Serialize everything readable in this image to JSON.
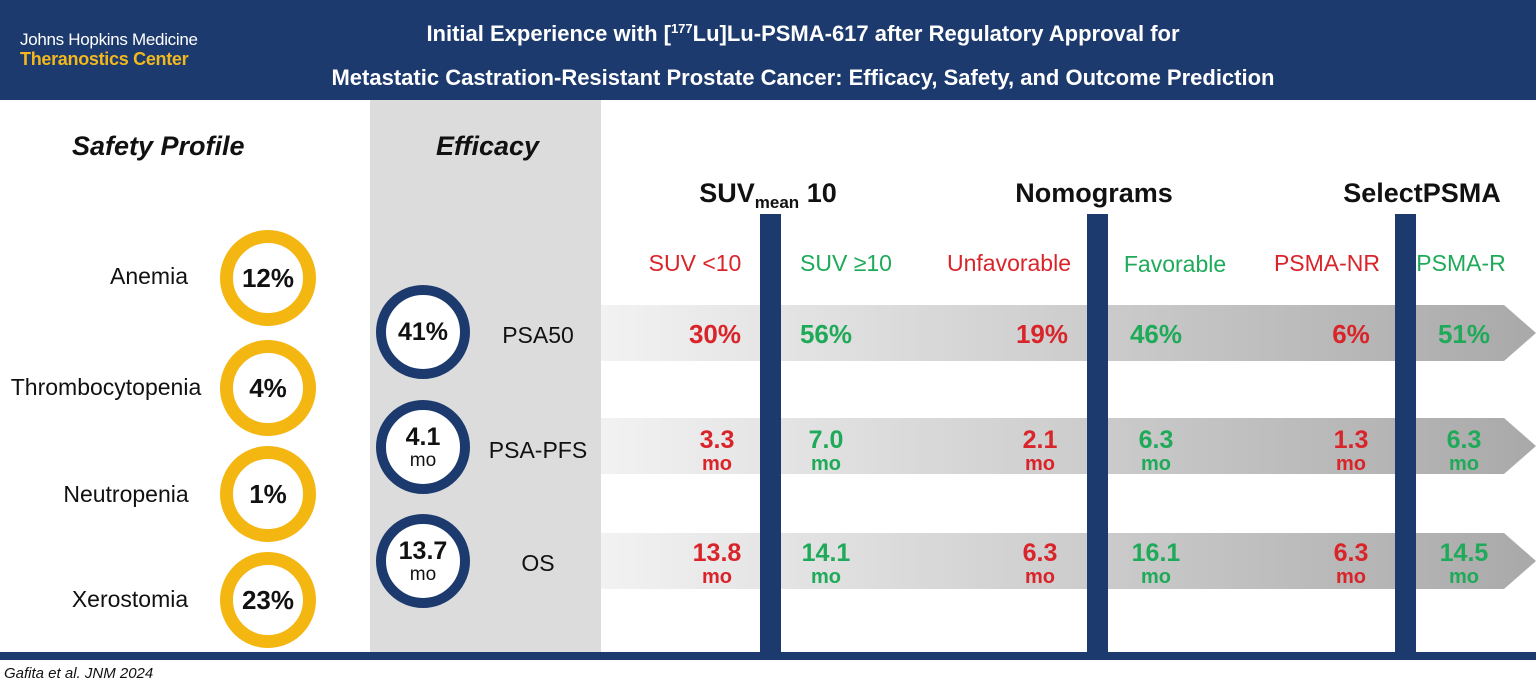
{
  "header": {
    "logo_line1": "Johns Hopkins Medicine",
    "logo_line2": "Theranostics Center",
    "title_line1_pre": "Initial Experience with [",
    "title_line1_sup": "177",
    "title_line1_post": "Lu]Lu-PSMA-617 after Regulatory Approval for",
    "title_line2": "Metastatic Castration-Resistant Prostate Cancer: Efficacy, Safety, and Outcome Prediction"
  },
  "safety": {
    "title": "Safety Profile",
    "items": [
      {
        "label": "Anemia",
        "value": "12%"
      },
      {
        "label": "Thrombocytopenia",
        "value": "4%"
      },
      {
        "label": "Neutropenia",
        "value": "1%"
      },
      {
        "label": "Xerostomia",
        "value": "23%"
      }
    ]
  },
  "efficacy": {
    "title": "Efficacy",
    "rows": [
      {
        "value": "41%",
        "unit": "",
        "label": "PSA50"
      },
      {
        "value": "4.1",
        "unit": "mo",
        "label": "PSA-PFS"
      },
      {
        "value": "13.7",
        "unit": "mo",
        "label": "OS"
      }
    ]
  },
  "groups": [
    {
      "title_main": "SUV",
      "title_sub": "mean",
      "title_rest": " 10",
      "neg_label": "SUV <10",
      "pos_label": "SUV ≥10",
      "neg": [
        {
          "num": "30%",
          "unit": ""
        },
        {
          "num": "3.3",
          "unit": "mo"
        },
        {
          "num": "13.8",
          "unit": "mo"
        }
      ],
      "pos": [
        {
          "num": "56%",
          "unit": ""
        },
        {
          "num": "7.0",
          "unit": "mo"
        },
        {
          "num": "14.1",
          "unit": "mo"
        }
      ]
    },
    {
      "title_main": "Nomograms",
      "title_sub": "",
      "title_rest": "",
      "neg_label": "Unfavorable",
      "pos_label": "Favorable",
      "neg": [
        {
          "num": "19%",
          "unit": ""
        },
        {
          "num": "2.1",
          "unit": "mo"
        },
        {
          "num": "6.3",
          "unit": "mo"
        }
      ],
      "pos": [
        {
          "num": "46%",
          "unit": ""
        },
        {
          "num": "6.3",
          "unit": "mo"
        },
        {
          "num": "16.1",
          "unit": "mo"
        }
      ]
    },
    {
      "title_main": "SelectPSMA",
      "title_sub": "",
      "title_rest": "",
      "neg_label": "PSMA-NR",
      "pos_label": "PSMA-R",
      "neg": [
        {
          "num": "6%",
          "unit": ""
        },
        {
          "num": "1.3",
          "unit": "mo"
        },
        {
          "num": "6.3",
          "unit": "mo"
        }
      ],
      "pos": [
        {
          "num": "51%",
          "unit": ""
        },
        {
          "num": "6.3",
          "unit": "mo"
        },
        {
          "num": "14.5",
          "unit": "mo"
        }
      ]
    }
  ],
  "citation": "Gafita et al. JNM 2024",
  "colors": {
    "navy": "#1c3a6e",
    "gold": "#f4b611",
    "red": "#d9242a",
    "green": "#1faa59",
    "panel_gray": "#dcdcdc"
  }
}
